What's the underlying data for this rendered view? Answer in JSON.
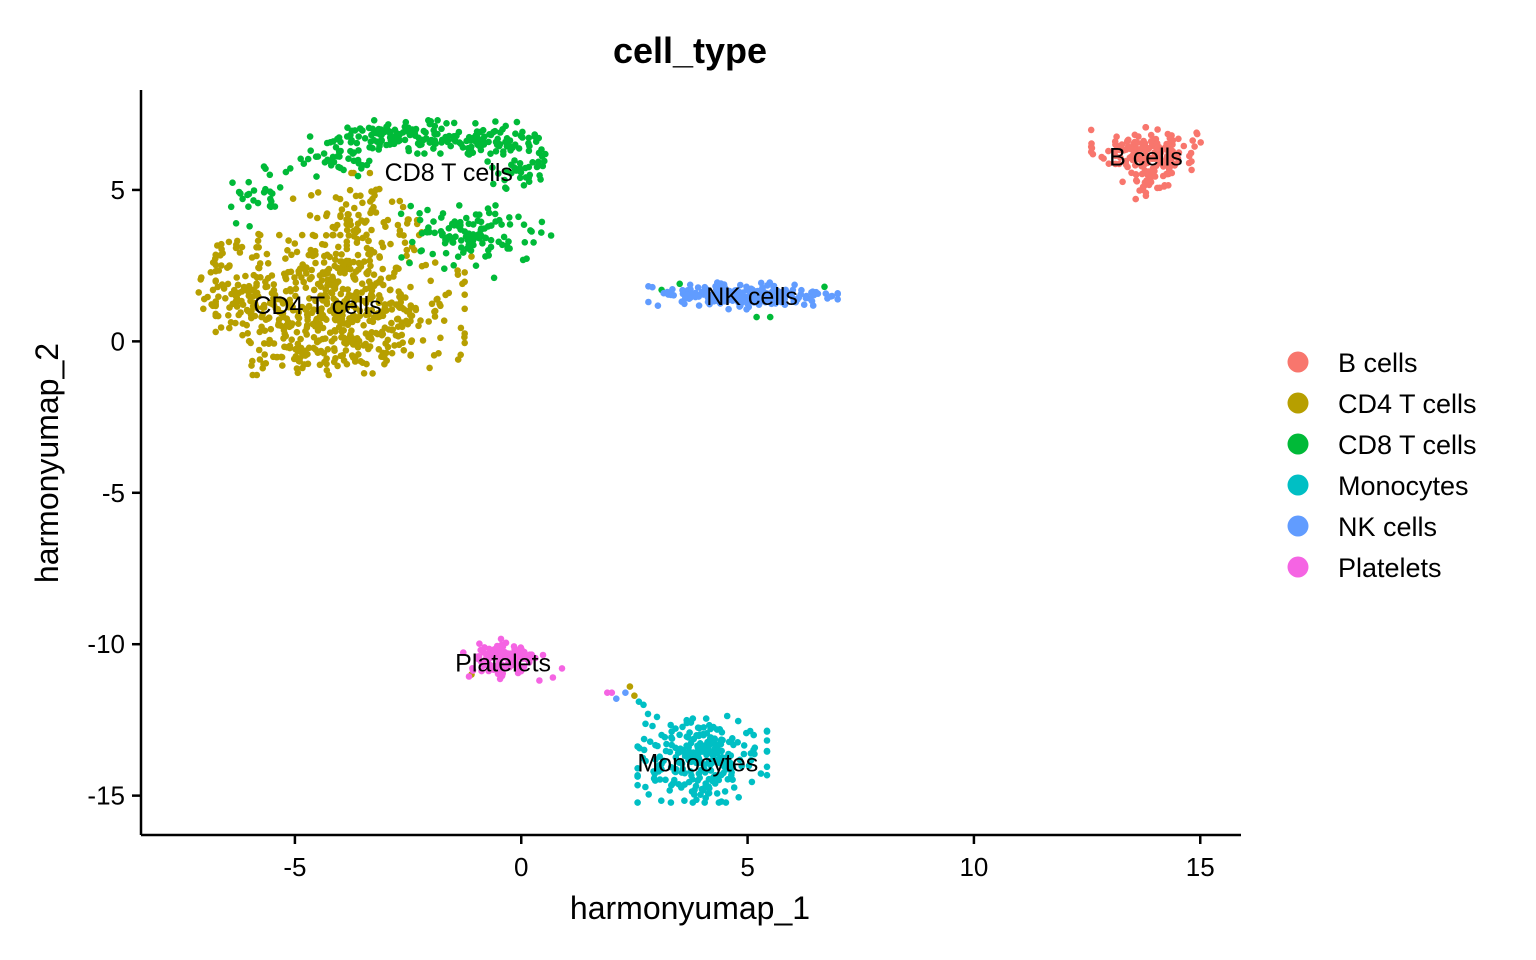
{
  "chart_data": {
    "type": "scatter",
    "title": "cell_type",
    "xlabel": "harmonyumap_1",
    "ylabel": "harmonyumap_2",
    "xlim": [
      -8.4,
      15.9
    ],
    "ylim": [
      -16.3,
      8.3
    ],
    "xticks": [
      -5,
      0,
      5,
      10,
      15
    ],
    "yticks": [
      -15,
      -10,
      -5,
      0,
      5
    ],
    "grid": false,
    "legend_placement": "right",
    "point_radius": 3.3,
    "series": [
      {
        "name": "B cells",
        "color": "#F8766D",
        "clusters": [
          {
            "cx": 13.8,
            "cy": 6.3,
            "sx": 0.55,
            "sy": 0.35,
            "n": 150
          },
          {
            "cx": 13.9,
            "cy": 5.4,
            "sx": 0.28,
            "sy": 0.32,
            "n": 40
          }
        ],
        "extra_points": []
      },
      {
        "name": "CD4 T cells",
        "color": "#B79F00",
        "clusters": [
          {
            "cx": -4.0,
            "cy": 1.2,
            "sx": 1.25,
            "sy": 1.05,
            "n": 520
          },
          {
            "cx": -6.2,
            "cy": 1.9,
            "sx": 0.45,
            "sy": 0.8,
            "n": 90
          },
          {
            "cx": -3.6,
            "cy": 3.8,
            "sx": 0.7,
            "sy": 0.8,
            "n": 100
          },
          {
            "cx": -4.2,
            "cy": -0.4,
            "sx": 0.8,
            "sy": 0.3,
            "n": 60
          }
        ],
        "extra_points": [
          [
            -2.0,
            2.0
          ],
          [
            -1.6,
            1.6
          ],
          [
            -1.3,
            1.9
          ],
          [
            -1.9,
            1.0
          ],
          [
            -2.3,
            4.0
          ],
          [
            -2.6,
            3.5
          ],
          [
            -1.1,
            2.8
          ],
          [
            -1.4,
            2.2
          ],
          [
            -1.1,
            -11.0
          ],
          [
            2.4,
            -11.4
          ],
          [
            2.5,
            -11.7
          ],
          [
            -2.2,
            3.6
          ],
          [
            -1.9,
            2.6
          ]
        ]
      },
      {
        "name": "CD8 T cells",
        "color": "#00BA38",
        "clusters": [
          {
            "cx": -2.6,
            "cy": 6.75,
            "sx": 0.8,
            "sy": 0.25,
            "n": 120
          },
          {
            "cx": -0.7,
            "cy": 6.6,
            "sx": 0.55,
            "sy": 0.3,
            "n": 80
          },
          {
            "cx": -4.1,
            "cy": 6.1,
            "sx": 0.5,
            "sy": 0.3,
            "n": 40
          },
          {
            "cx": -5.6,
            "cy": 5.0,
            "sx": 0.4,
            "sy": 0.35,
            "n": 25
          },
          {
            "cx": 0.0,
            "cy": 5.6,
            "sx": 0.35,
            "sy": 0.35,
            "n": 35
          },
          {
            "cx": -1.1,
            "cy": 3.5,
            "sx": 0.8,
            "sy": 0.45,
            "n": 110
          }
        ],
        "extra_points": [
          [
            -6.0,
            3.8
          ],
          [
            -6.3,
            3.9
          ],
          [
            3.1,
            1.7
          ],
          [
            3.5,
            1.9
          ],
          [
            6.7,
            1.8
          ],
          [
            5.2,
            0.8
          ],
          [
            5.5,
            0.8
          ],
          [
            -2.2,
            3.0
          ],
          [
            -1.7,
            2.4
          ],
          [
            -1.0,
            2.5
          ],
          [
            -0.6,
            2.1
          ]
        ]
      },
      {
        "name": "Monocytes",
        "color": "#00BFC4",
        "clusters": [
          {
            "cx": 4.0,
            "cy": -13.8,
            "sx": 0.65,
            "sy": 0.65,
            "n": 260
          }
        ],
        "extra_points": [
          [
            2.6,
            -11.9
          ],
          [
            2.8,
            -12.3
          ],
          [
            2.9,
            -12.7
          ],
          [
            3.0,
            -12.4
          ],
          [
            3.1,
            -13.0
          ],
          [
            2.7,
            -12.0
          ]
        ]
      },
      {
        "name": "NK cells",
        "color": "#619CFF",
        "clusters": [
          {
            "cx": 4.9,
            "cy": 1.5,
            "sx": 0.95,
            "sy": 0.2,
            "n": 230
          }
        ],
        "extra_points": [
          [
            2.1,
            -11.8
          ],
          [
            2.3,
            -11.6
          ]
        ]
      },
      {
        "name": "Platelets",
        "color": "#F564E3",
        "clusters": [
          {
            "cx": -0.4,
            "cy": -10.5,
            "sx": 0.4,
            "sy": 0.32,
            "n": 110
          }
        ],
        "extra_points": [
          [
            0.9,
            -10.8
          ],
          [
            0.7,
            -11.1
          ],
          [
            0.4,
            -11.2
          ],
          [
            1.9,
            -11.6
          ],
          [
            2.0,
            -11.6
          ]
        ]
      }
    ],
    "cluster_labels": [
      {
        "text": "CD8 T cells",
        "x": -1.6,
        "y": 5.6
      },
      {
        "text": "CD4 T cells",
        "x": -4.5,
        "y": 1.2
      },
      {
        "text": "NK cells",
        "x": 5.1,
        "y": 1.5
      },
      {
        "text": "B cells",
        "x": 13.8,
        "y": 6.1
      },
      {
        "text": "Platelets",
        "x": -0.4,
        "y": -10.6
      },
      {
        "text": "Monocytes",
        "x": 3.9,
        "y": -13.9
      }
    ]
  }
}
